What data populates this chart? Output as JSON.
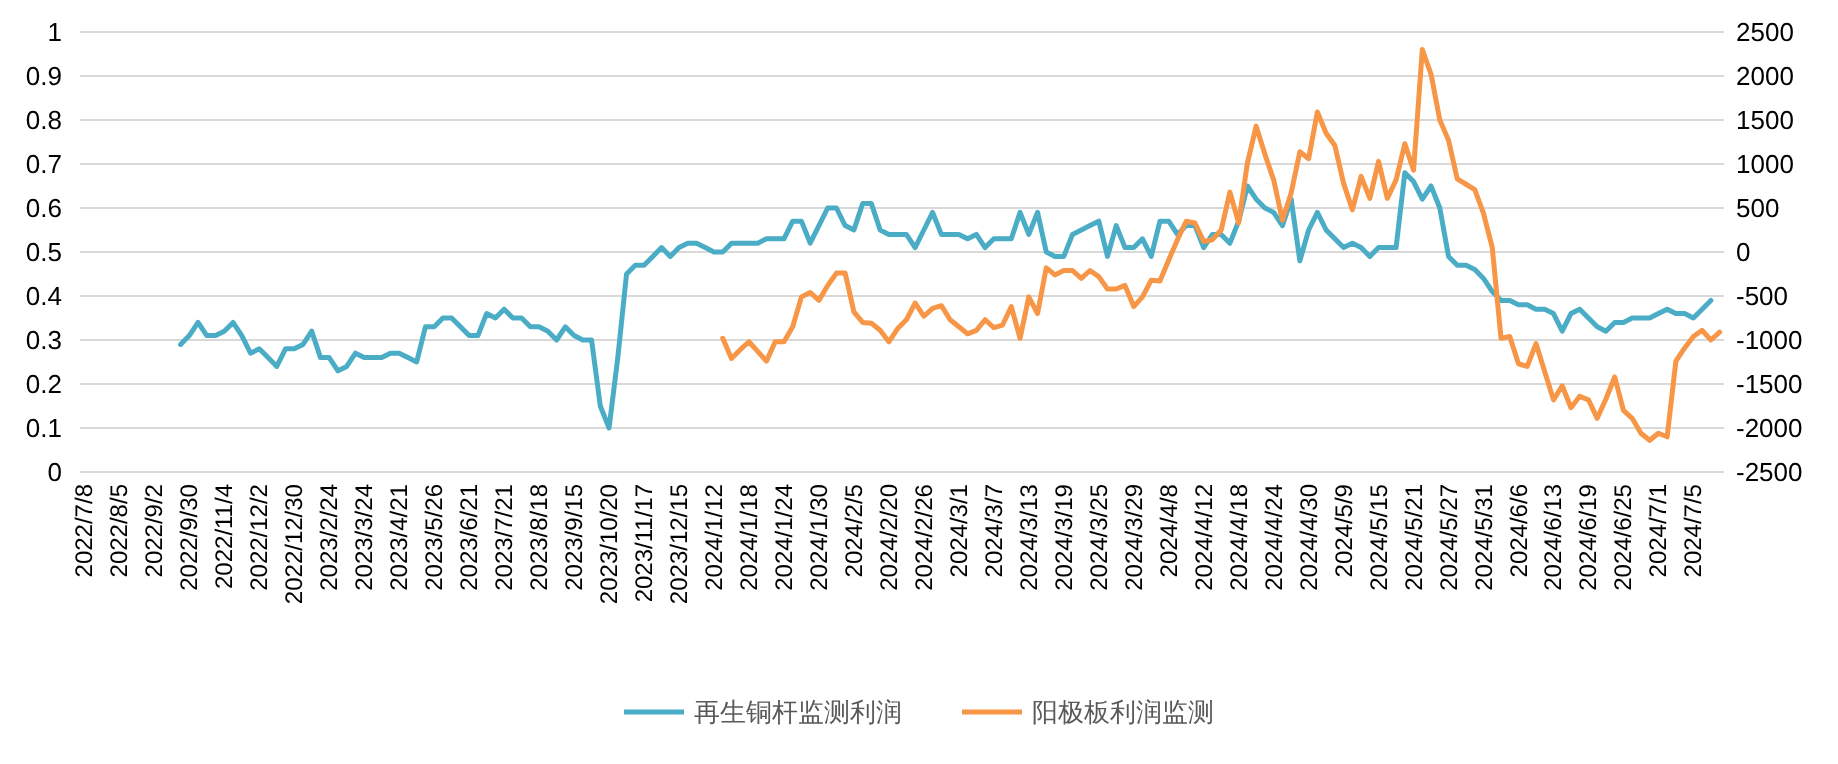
{
  "chart_data": {
    "type": "line",
    "categories": [
      "2022/7/8",
      null,
      null,
      null,
      "2022/8/5",
      null,
      null,
      null,
      "2022/9/2",
      null,
      null,
      null,
      "2022/9/30",
      null,
      null,
      null,
      "2022/11/4",
      null,
      null,
      null,
      "2022/12/2",
      null,
      null,
      null,
      "2022/12/30",
      null,
      null,
      null,
      "2023/2/24",
      null,
      null,
      null,
      "2023/3/24",
      null,
      null,
      null,
      "2023/4/21",
      null,
      null,
      null,
      "2023/5/26",
      null,
      null,
      null,
      "2023/6/21",
      null,
      null,
      null,
      "2023/7/21",
      null,
      null,
      null,
      "2023/8/18",
      null,
      null,
      null,
      "2023/9/15",
      null,
      null,
      null,
      "2023/10/20",
      null,
      null,
      null,
      "2023/11/17",
      null,
      null,
      null,
      "2023/12/15",
      null,
      null,
      null,
      "2024/1/12",
      null,
      null,
      null,
      "2024/1/18",
      null,
      null,
      null,
      "2024/1/24",
      null,
      null,
      null,
      "2024/1/30",
      null,
      null,
      null,
      "2024/2/5",
      null,
      null,
      null,
      "2024/2/20",
      null,
      null,
      null,
      "2024/2/26",
      null,
      null,
      null,
      "2024/3/1",
      null,
      null,
      null,
      "2024/3/7",
      null,
      null,
      null,
      "2024/3/13",
      null,
      null,
      null,
      "2024/3/19",
      null,
      null,
      null,
      "2024/3/25",
      null,
      null,
      null,
      "2024/3/29",
      null,
      null,
      null,
      "2024/4/8",
      null,
      null,
      null,
      "2024/4/12",
      null,
      null,
      null,
      "2024/4/18",
      null,
      null,
      null,
      "2024/4/24",
      null,
      null,
      null,
      "2024/4/30",
      null,
      null,
      null,
      "2024/5/9",
      null,
      null,
      null,
      "2024/5/15",
      null,
      null,
      null,
      "2024/5/21",
      null,
      null,
      null,
      "2024/5/27",
      null,
      null,
      null,
      "2024/5/31",
      null,
      null,
      null,
      "2024/6/6",
      null,
      null,
      null,
      "2024/6/13",
      null,
      null,
      null,
      "2024/6/19",
      null,
      null,
      null,
      "2024/6/25",
      null,
      null,
      null,
      "2024/7/1",
      null,
      null,
      null,
      "2024/7/5",
      null,
      null,
      null
    ],
    "series": [
      {
        "name": "再生铜杆监测利润",
        "color": "#4bacc6",
        "values": [
          null,
          null,
          null,
          null,
          null,
          null,
          null,
          null,
          null,
          null,
          null,
          0.29,
          0.31,
          0.34,
          0.31,
          0.31,
          0.32,
          0.34,
          0.31,
          0.27,
          0.28,
          0.26,
          0.24,
          0.28,
          0.28,
          0.29,
          0.32,
          0.26,
          0.26,
          0.23,
          0.24,
          0.27,
          0.26,
          0.26,
          0.26,
          0.27,
          0.27,
          0.26,
          0.25,
          0.33,
          0.33,
          0.35,
          0.35,
          0.33,
          0.31,
          0.31,
          0.36,
          0.35,
          0.37,
          0.35,
          0.35,
          0.33,
          0.33,
          0.32,
          0.3,
          0.33,
          0.31,
          0.3,
          0.3,
          0.15,
          0.1,
          0.26,
          0.45,
          0.47,
          0.47,
          0.49,
          0.51,
          0.49,
          0.51,
          0.52,
          0.52,
          0.51,
          0.5,
          0.5,
          0.52,
          0.52,
          0.52,
          0.52,
          0.53,
          0.53,
          0.53,
          0.57,
          0.57,
          0.52,
          0.56,
          0.6,
          0.6,
          0.56,
          0.55,
          0.61,
          0.61,
          0.55,
          0.54,
          0.54,
          0.54,
          0.51,
          0.55,
          0.59,
          0.54,
          0.54,
          0.54,
          0.53,
          0.54,
          0.51,
          0.53,
          0.53,
          0.53,
          0.59,
          0.54,
          0.59,
          0.5,
          0.49,
          0.49,
          0.54,
          0.55,
          0.56,
          0.57,
          0.49,
          0.56,
          0.51,
          0.51,
          0.53,
          0.49,
          0.57,
          0.57,
          0.54,
          0.56,
          0.56,
          0.51,
          0.54,
          0.54,
          0.52,
          0.57,
          0.65,
          0.62,
          0.6,
          0.59,
          0.56,
          0.62,
          0.48,
          0.55,
          0.59,
          0.55,
          0.53,
          0.51,
          0.52,
          0.51,
          0.49,
          0.51,
          0.51,
          0.51,
          0.68,
          0.66,
          0.62,
          0.65,
          0.6,
          0.49,
          0.47,
          0.47,
          0.46,
          0.44,
          0.41,
          0.39,
          0.39,
          0.38,
          0.38,
          0.37,
          0.37,
          0.36,
          0.32,
          0.36,
          0.37,
          0.35,
          0.33,
          0.32,
          0.34,
          0.34,
          0.35,
          0.35,
          0.35,
          0.36,
          0.37,
          0.36,
          0.36,
          0.35,
          0.37,
          0.39,
          null
        ]
      },
      {
        "name": "阳极板利润监测",
        "color": "#f79646",
        "axis": "y2",
        "values": [
          null,
          null,
          null,
          null,
          null,
          null,
          null,
          null,
          null,
          null,
          null,
          null,
          null,
          null,
          null,
          null,
          null,
          null,
          null,
          null,
          null,
          null,
          null,
          null,
          null,
          null,
          null,
          null,
          null,
          null,
          null,
          null,
          null,
          null,
          null,
          null,
          null,
          null,
          null,
          null,
          null,
          null,
          null,
          null,
          null,
          null,
          null,
          null,
          null,
          null,
          null,
          null,
          null,
          null,
          null,
          null,
          null,
          null,
          null,
          null,
          null,
          null,
          null,
          null,
          null,
          null,
          null,
          null,
          null,
          null,
          null,
          null,
          null,
          -980,
          -1210,
          -1110,
          -1020,
          -1130,
          -1240,
          -1020,
          -1020,
          -850,
          -510,
          -460,
          -550,
          -380,
          -240,
          -240,
          -680,
          -800,
          -810,
          -890,
          -1020,
          -870,
          -770,
          -580,
          -730,
          -640,
          -610,
          -770,
          -850,
          -930,
          -890,
          -770,
          -860,
          -830,
          -620,
          -980,
          -510,
          -700,
          -180,
          -260,
          -210,
          -210,
          -300,
          -210,
          -280,
          -420,
          -420,
          -380,
          -620,
          -510,
          -320,
          -330,
          -90,
          140,
          350,
          330,
          120,
          140,
          250,
          680,
          330,
          1010,
          1430,
          1110,
          820,
          360,
          670,
          1140,
          1060,
          1590,
          1350,
          1210,
          780,
          480,
          860,
          610,
          1030,
          610,
          820,
          1230,
          930,
          2300,
          2020,
          1500,
          1270,
          830,
          770,
          710,
          440,
          50,
          -980,
          -960,
          -1270,
          -1300,
          -1040,
          -1360,
          -1680,
          -1520,
          -1770,
          -1640,
          -1680,
          -1890,
          -1670,
          -1420,
          -1800,
          -1890,
          -2060,
          -2140,
          -2060,
          -2100,
          -1240,
          -1090,
          -960,
          -890,
          -1000,
          -910
        ]
      }
    ],
    "ylim": [
      0,
      1
    ],
    "yticks": [
      0,
      0.1,
      0.2,
      0.3,
      0.4,
      0.5,
      0.6,
      0.7,
      0.8,
      0.9,
      1
    ],
    "y2lim": [
      -2500,
      2500
    ],
    "y2ticks": [
      -2500,
      -2000,
      -1500,
      -1000,
      -500,
      0,
      500,
      1000,
      1500,
      2000,
      2500
    ],
    "grid": "y",
    "legend": "bottom",
    "marker": "none",
    "line_style": "solid"
  }
}
